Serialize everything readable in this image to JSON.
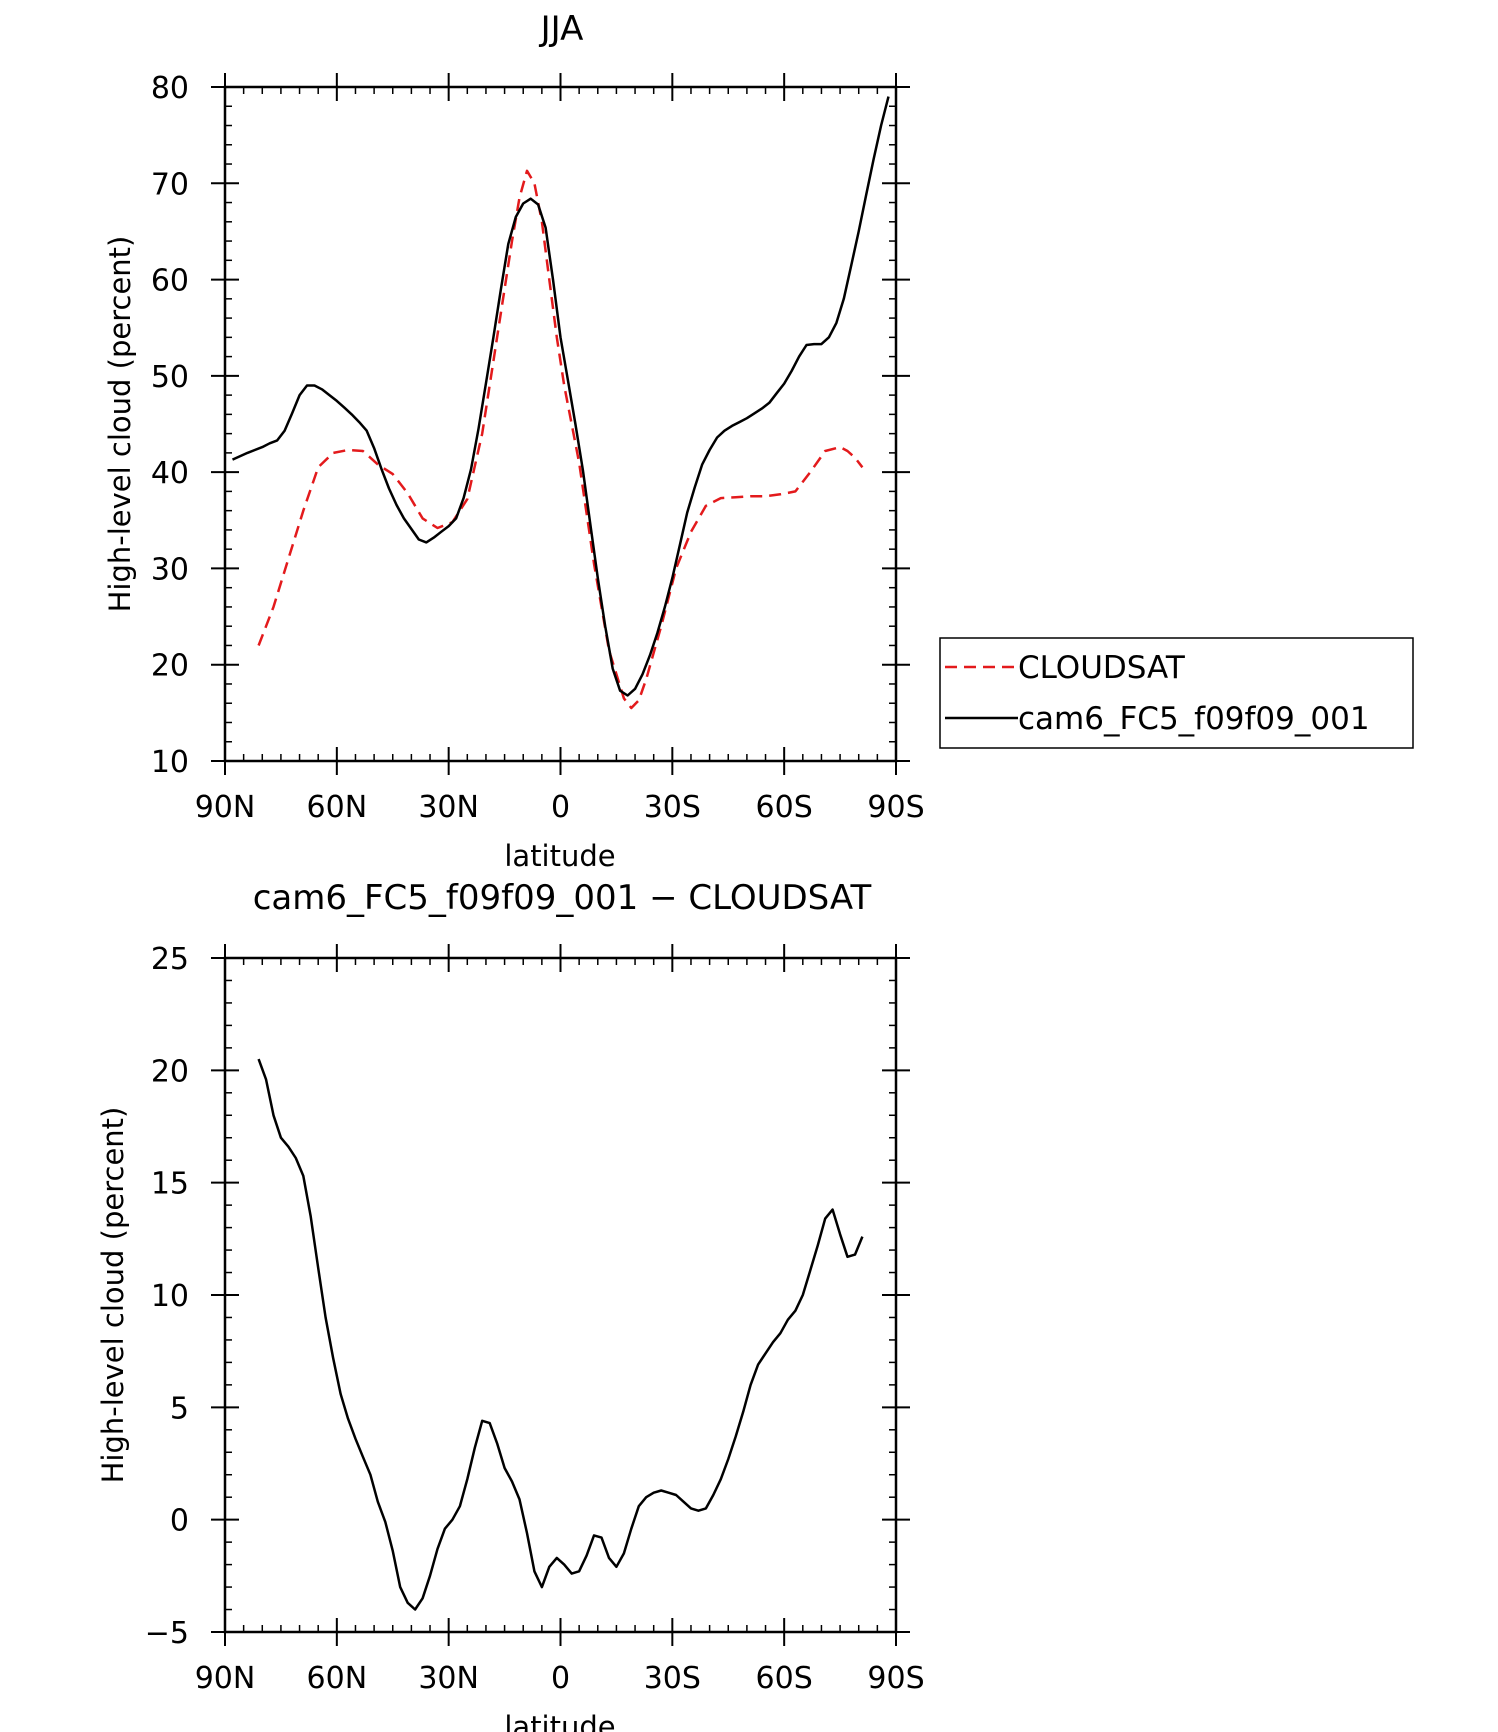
{
  "chart_data": [
    {
      "type": "line",
      "title": "JJA",
      "xlabel": "latitude",
      "ylabel": "High-level cloud (percent)",
      "xlim": [
        -90,
        90
      ],
      "ylim": [
        10,
        80
      ],
      "x_ticks": [
        {
          "value": -90,
          "label": "90N"
        },
        {
          "value": -60,
          "label": "60N"
        },
        {
          "value": -30,
          "label": "30N"
        },
        {
          "value": 0,
          "label": "0"
        },
        {
          "value": 30,
          "label": "30S"
        },
        {
          "value": 60,
          "label": "60S"
        },
        {
          "value": 90,
          "label": "90S"
        }
      ],
      "y_ticks": [
        10,
        20,
        30,
        40,
        50,
        60,
        70,
        80
      ],
      "legend_position": "right",
      "series": [
        {
          "name": "CLOUDSAT",
          "color": "#e31a1c",
          "dash": "dashed",
          "x": [
            -81,
            -77,
            -73,
            -69,
            -65,
            -61,
            -57,
            -53,
            -49,
            -45,
            -41,
            -37,
            -33,
            -29,
            -25,
            -21,
            -17,
            -13,
            -11,
            -9,
            -7,
            -5,
            -3,
            -1,
            1,
            5,
            9,
            13,
            17,
            19,
            21,
            23,
            27,
            31,
            35,
            39,
            43,
            47,
            51,
            55,
            59,
            63,
            67,
            71,
            75,
            77,
            79,
            81
          ],
          "y": [
            22,
            26,
            31,
            36,
            40.5,
            42,
            42.3,
            42.2,
            40.8,
            39.8,
            37.8,
            35.2,
            34.2,
            34.8,
            37.2,
            44,
            54,
            64,
            68.5,
            71.3,
            70,
            66,
            60,
            54,
            49,
            41,
            30.5,
            21.5,
            16.5,
            15.5,
            16.3,
            18.5,
            24,
            30,
            33.8,
            36.5,
            37.3,
            37.4,
            37.5,
            37.5,
            37.7,
            38,
            40,
            42.2,
            42.6,
            42.2,
            41.5,
            40.5
          ]
        },
        {
          "name": "cam6_FC5_f09f09_001",
          "color": "#000000",
          "dash": "solid",
          "x": [
            -88,
            -84,
            -80,
            -78,
            -76,
            -74,
            -72,
            -70,
            -68,
            -66,
            -64,
            -62,
            -60,
            -58,
            -56,
            -54,
            -52,
            -50,
            -48,
            -46,
            -44,
            -42,
            -40,
            -38,
            -36,
            -34,
            -32,
            -30,
            -28,
            -26,
            -24,
            -22,
            -20,
            -18,
            -16,
            -14,
            -12,
            -10,
            -8,
            -6,
            -4,
            -2,
            0,
            2,
            4,
            6,
            8,
            10,
            12,
            14,
            16,
            18,
            20,
            22,
            24,
            26,
            28,
            30,
            32,
            34,
            36,
            38,
            40,
            42,
            44,
            46,
            48,
            50,
            52,
            54,
            56,
            58,
            60,
            62,
            64,
            66,
            68,
            70,
            72,
            74,
            76,
            78,
            80,
            82,
            84,
            86,
            88
          ],
          "y": [
            41.3,
            42,
            42.6,
            43,
            43.3,
            44.3,
            46.1,
            48,
            49,
            49,
            48.6,
            48,
            47.4,
            46.7,
            46,
            45.2,
            44.3,
            42.5,
            40.3,
            38.3,
            36.6,
            35.2,
            34.1,
            33,
            32.7,
            33.2,
            33.8,
            34.4,
            35.2,
            37.3,
            40.3,
            44.5,
            49.2,
            54,
            59,
            63.7,
            66.5,
            67.9,
            68.4,
            67.8,
            65.4,
            60,
            54,
            49.5,
            45,
            40.2,
            34.6,
            29,
            24,
            19.6,
            17.3,
            16.8,
            17.5,
            19,
            21,
            23.3,
            26,
            29,
            32.4,
            35.8,
            38.4,
            40.8,
            42.3,
            43.6,
            44.3,
            44.8,
            45.2,
            45.6,
            46.1,
            46.6,
            47.2,
            48.2,
            49.2,
            50.5,
            52,
            53.2,
            53.3,
            53.3,
            54,
            55.5,
            58,
            61.5,
            65,
            68.8,
            72.5,
            76,
            79
          ]
        }
      ]
    },
    {
      "type": "line",
      "title": "cam6_FC5_f09f09_001 − CLOUDSAT",
      "xlabel": "latitude",
      "ylabel": "High-level cloud (percent)",
      "xlim": [
        -90,
        90
      ],
      "ylim": [
        -5,
        25
      ],
      "x_ticks": [
        {
          "value": -90,
          "label": "90N"
        },
        {
          "value": -60,
          "label": "60N"
        },
        {
          "value": -30,
          "label": "30N"
        },
        {
          "value": 0,
          "label": "0"
        },
        {
          "value": 30,
          "label": "30S"
        },
        {
          "value": 60,
          "label": "60S"
        },
        {
          "value": 90,
          "label": "90S"
        }
      ],
      "y_ticks": [
        -5,
        0,
        5,
        10,
        15,
        20,
        25
      ],
      "series": [
        {
          "color": "#000000",
          "dash": "solid",
          "x": [
            -81,
            -79,
            -77,
            -75,
            -73,
            -71,
            -69,
            -67,
            -65,
            -63,
            -61,
            -59,
            -57,
            -55,
            -53,
            -51,
            -49,
            -47,
            -45,
            -43,
            -41,
            -39,
            -37,
            -35,
            -33,
            -31,
            -29,
            -27,
            -25,
            -23,
            -21,
            -19,
            -17,
            -15,
            -13,
            -11,
            -9,
            -7,
            -5,
            -3,
            -1,
            1,
            3,
            5,
            7,
            9,
            11,
            13,
            15,
            17,
            19,
            21,
            23,
            25,
            27,
            29,
            31,
            33,
            35,
            37,
            39,
            41,
            43,
            45,
            47,
            49,
            51,
            53,
            55,
            57,
            59,
            61,
            63,
            65,
            67,
            69,
            71,
            73,
            75,
            77,
            79,
            81
          ],
          "y": [
            20.5,
            19.6,
            18,
            17,
            16.6,
            16.1,
            15.3,
            13.5,
            11.2,
            9,
            7.2,
            5.6,
            4.5,
            3.6,
            2.8,
            2,
            0.8,
            -0.1,
            -1.4,
            -3,
            -3.7,
            -4,
            -3.5,
            -2.5,
            -1.3,
            -0.4,
            0,
            0.6,
            1.8,
            3.2,
            4.4,
            4.3,
            3.4,
            2.3,
            1.7,
            0.9,
            -0.6,
            -2.3,
            -3,
            -2.1,
            -1.7,
            -2,
            -2.4,
            -2.3,
            -1.6,
            -0.7,
            -0.8,
            -1.7,
            -2.1,
            -1.5,
            -0.4,
            0.6,
            1,
            1.2,
            1.3,
            1.2,
            1.1,
            0.8,
            0.5,
            0.4,
            0.5,
            1.1,
            1.8,
            2.7,
            3.7,
            4.8,
            6,
            6.9,
            7.4,
            7.9,
            8.3,
            8.9,
            9.3,
            10,
            11.1,
            12.2,
            13.4,
            13.8,
            12.7,
            11.7,
            11.8,
            12.6
          ]
        }
      ]
    }
  ]
}
